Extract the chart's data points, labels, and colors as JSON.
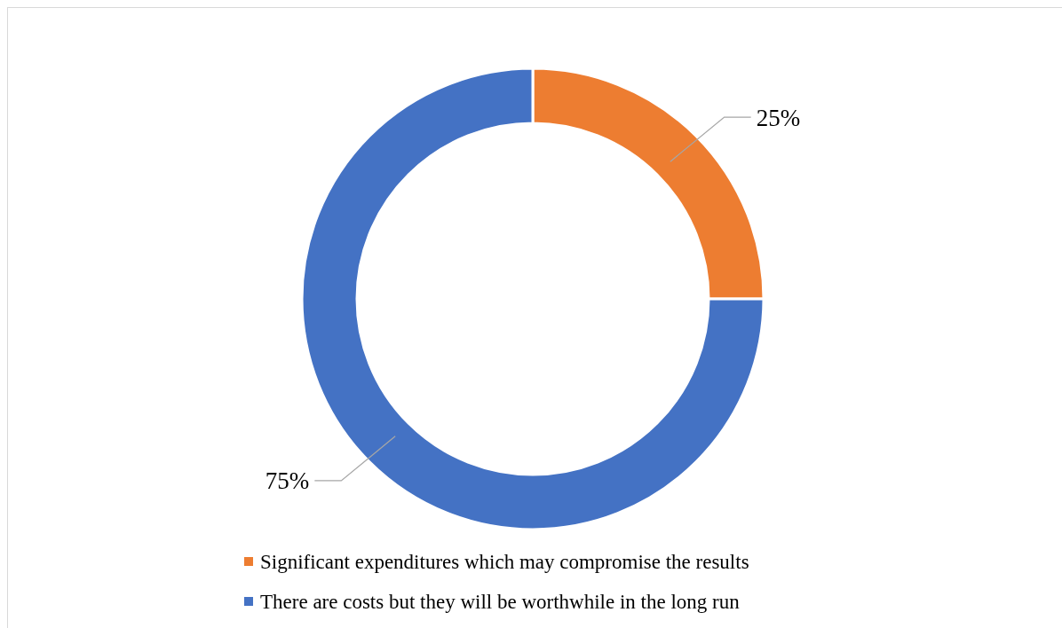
{
  "chart_data": {
    "type": "donut",
    "categories": [
      "Significant expenditures which may compromise the results",
      "There are costs but they will be worthwhile in the long run"
    ],
    "values": [
      25,
      75
    ],
    "colors": [
      "#ed7d31",
      "#4472c4"
    ],
    "value_labels": [
      "25%",
      "75%"
    ],
    "legend": "bottom"
  }
}
